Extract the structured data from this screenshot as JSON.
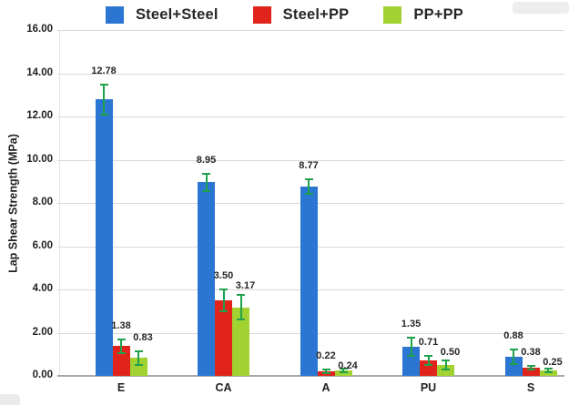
{
  "chart_data": {
    "type": "bar",
    "title": "",
    "xlabel": "",
    "ylabel": "Lap Shear Strength (MPa)",
    "ylim": [
      0,
      16
    ],
    "ytick_step": 2,
    "ytick_labels": [
      "0.00",
      "2.00",
      "4.00",
      "6.00",
      "8.00",
      "10.00",
      "12.00",
      "14.00",
      "16.00"
    ],
    "grid": true,
    "legend_position": "top",
    "error_bar_color": "#1FA14C",
    "categories": [
      "E",
      "CA",
      "A",
      "PU",
      "S"
    ],
    "series": [
      {
        "name": "Steel+Steel",
        "color": "#2B76D3",
        "values": [
          12.78,
          8.95,
          8.77,
          1.35,
          0.88
        ],
        "errors": [
          0.72,
          0.45,
          0.38,
          0.45,
          0.38
        ],
        "labels": [
          "12.78",
          "8.95",
          "8.77",
          "1.35",
          "0.88"
        ]
      },
      {
        "name": "Steel+PP",
        "color": "#E0241B",
        "values": [
          1.38,
          3.5,
          0.22,
          0.71,
          0.38
        ],
        "errors": [
          0.35,
          0.55,
          0.12,
          0.25,
          0.13
        ],
        "labels": [
          "1.38",
          "3.50",
          "0.22",
          "0.71",
          "0.38"
        ]
      },
      {
        "name": "PP+PP",
        "color": "#A2D231",
        "values": [
          0.83,
          3.17,
          0.24,
          0.5,
          0.25
        ],
        "errors": [
          0.35,
          0.6,
          0.12,
          0.25,
          0.12
        ],
        "labels": [
          "0.83",
          "3.17",
          "0.24",
          "0.50",
          "0.25"
        ]
      }
    ]
  }
}
